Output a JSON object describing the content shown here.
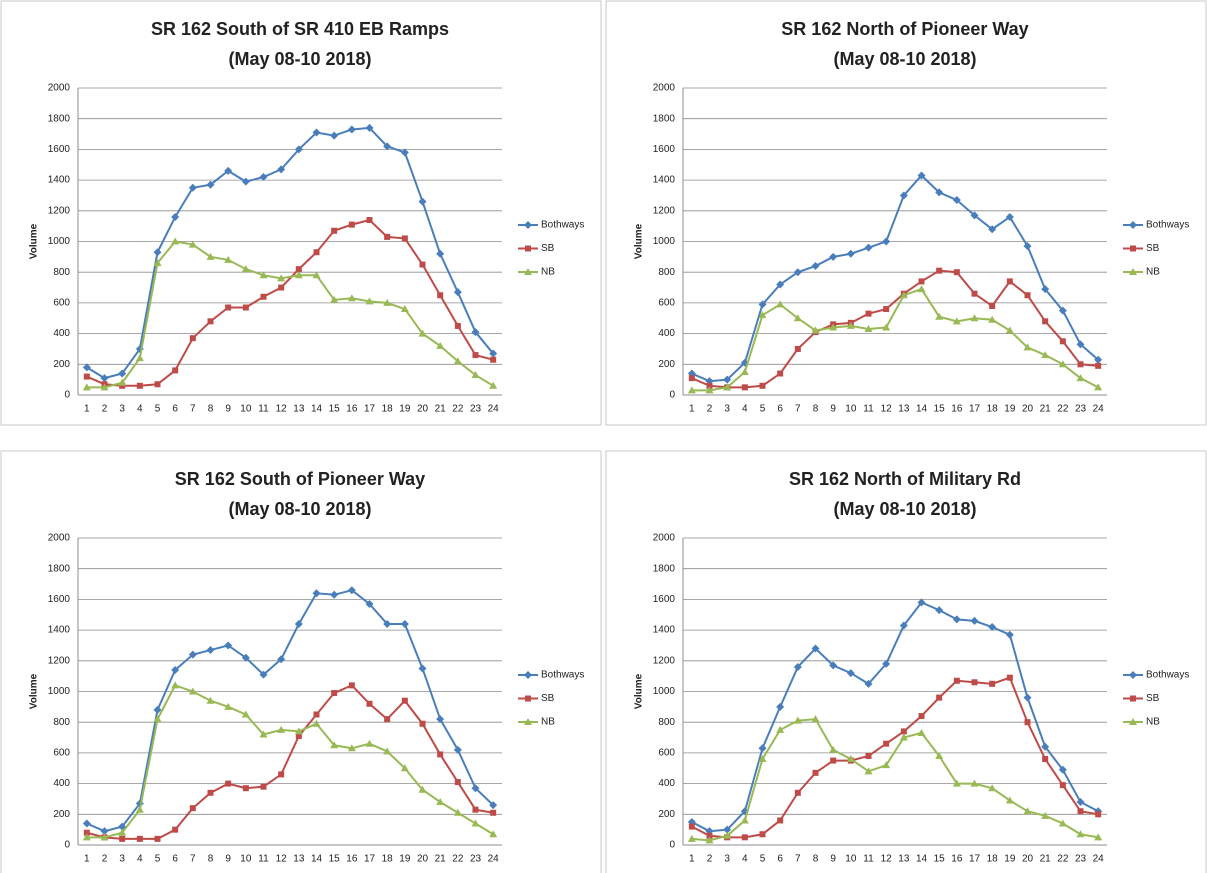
{
  "chart_data": [
    {
      "type": "line",
      "title": "SR 162 South of SR 410 EB Ramps",
      "subtitle": "(May 08-10 2018)",
      "y_label": "Volume",
      "categories": [
        1,
        2,
        3,
        4,
        5,
        6,
        7,
        8,
        9,
        10,
        11,
        12,
        13,
        14,
        15,
        16,
        17,
        18,
        19,
        20,
        21,
        22,
        23,
        24
      ],
      "ylim": [
        0,
        2000
      ],
      "yticks": [
        0,
        200,
        400,
        600,
        800,
        1000,
        1200,
        1400,
        1600,
        1800,
        2000
      ],
      "grid": true,
      "legend": "right",
      "series": [
        {
          "name": "Bothways",
          "color": "#4a7ebb",
          "marker": "diamond",
          "values": [
            180,
            110,
            140,
            300,
            930,
            1160,
            1350,
            1370,
            1460,
            1390,
            1420,
            1470,
            1600,
            1710,
            1690,
            1730,
            1740,
            1620,
            1580,
            1260,
            920,
            670,
            410,
            270
          ]
        },
        {
          "name": "SB",
          "color": "#be4b48",
          "marker": "square",
          "values": [
            120,
            70,
            60,
            60,
            70,
            160,
            370,
            480,
            570,
            570,
            640,
            700,
            820,
            930,
            1070,
            1110,
            1140,
            1030,
            1020,
            850,
            650,
            450,
            260,
            230
          ]
        },
        {
          "name": "NB",
          "color": "#98b954",
          "marker": "triangle",
          "values": [
            50,
            50,
            80,
            240,
            860,
            1000,
            980,
            900,
            880,
            820,
            780,
            760,
            780,
            780,
            620,
            630,
            610,
            600,
            560,
            400,
            320,
            220,
            130,
            60
          ]
        }
      ]
    },
    {
      "type": "line",
      "title": "SR 162 North of Pioneer Way",
      "subtitle": "(May 08-10 2018)",
      "y_label": "Volume",
      "categories": [
        1,
        2,
        3,
        4,
        5,
        6,
        7,
        8,
        9,
        10,
        11,
        12,
        13,
        14,
        15,
        16,
        17,
        18,
        19,
        20,
        21,
        22,
        23,
        24
      ],
      "ylim": [
        0,
        2000
      ],
      "yticks": [
        0,
        200,
        400,
        600,
        800,
        1000,
        1200,
        1400,
        1600,
        1800,
        2000
      ],
      "grid": true,
      "legend": "right",
      "series": [
        {
          "name": "Bothways",
          "color": "#4a7ebb",
          "marker": "diamond",
          "values": [
            140,
            90,
            100,
            210,
            590,
            720,
            800,
            840,
            900,
            920,
            960,
            1000,
            1300,
            1430,
            1320,
            1270,
            1170,
            1080,
            1160,
            970,
            690,
            550,
            330,
            230
          ]
        },
        {
          "name": "SB",
          "color": "#be4b48",
          "marker": "square",
          "values": [
            110,
            60,
            50,
            50,
            60,
            140,
            300,
            410,
            460,
            470,
            530,
            560,
            660,
            740,
            810,
            800,
            660,
            580,
            740,
            650,
            480,
            350,
            200,
            190
          ]
        },
        {
          "name": "NB",
          "color": "#98b954",
          "marker": "triangle",
          "values": [
            30,
            30,
            50,
            150,
            520,
            590,
            500,
            420,
            440,
            450,
            430,
            440,
            650,
            690,
            510,
            480,
            500,
            490,
            420,
            310,
            260,
            200,
            110,
            50
          ]
        }
      ]
    },
    {
      "type": "line",
      "title": "SR 162 South of Pioneer Way",
      "subtitle": "(May 08-10 2018)",
      "y_label": "Volume",
      "categories": [
        1,
        2,
        3,
        4,
        5,
        6,
        7,
        8,
        9,
        10,
        11,
        12,
        13,
        14,
        15,
        16,
        17,
        18,
        19,
        20,
        21,
        22,
        23,
        24
      ],
      "ylim": [
        0,
        2000
      ],
      "yticks": [
        0,
        200,
        400,
        600,
        800,
        1000,
        1200,
        1400,
        1600,
        1800,
        2000
      ],
      "grid": true,
      "legend": "right",
      "series": [
        {
          "name": "Bothways",
          "color": "#4a7ebb",
          "marker": "diamond",
          "values": [
            140,
            90,
            120,
            270,
            880,
            1140,
            1240,
            1270,
            1300,
            1220,
            1110,
            1210,
            1440,
            1640,
            1630,
            1660,
            1570,
            1440,
            1440,
            1150,
            820,
            620,
            370,
            260
          ]
        },
        {
          "name": "SB",
          "color": "#be4b48",
          "marker": "square",
          "values": [
            80,
            50,
            40,
            40,
            40,
            100,
            240,
            340,
            400,
            370,
            380,
            460,
            710,
            850,
            990,
            1040,
            920,
            820,
            940,
            790,
            590,
            410,
            230,
            210
          ]
        },
        {
          "name": "NB",
          "color": "#98b954",
          "marker": "triangle",
          "values": [
            50,
            50,
            80,
            230,
            820,
            1040,
            1000,
            940,
            900,
            850,
            720,
            750,
            740,
            790,
            650,
            630,
            660,
            610,
            500,
            360,
            280,
            210,
            140,
            70
          ]
        }
      ]
    },
    {
      "type": "line",
      "title": "SR 162 North of Military Rd",
      "subtitle": "(May 08-10 2018)",
      "y_label": "Volume",
      "categories": [
        1,
        2,
        3,
        4,
        5,
        6,
        7,
        8,
        9,
        10,
        11,
        12,
        13,
        14,
        15,
        16,
        17,
        18,
        19,
        20,
        21,
        22,
        23,
        24
      ],
      "ylim": [
        0,
        2000
      ],
      "yticks": [
        0,
        200,
        400,
        600,
        800,
        1000,
        1200,
        1400,
        1600,
        1800,
        2000
      ],
      "grid": true,
      "legend": "right",
      "series": [
        {
          "name": "Bothways",
          "color": "#4a7ebb",
          "marker": "diamond",
          "values": [
            150,
            90,
            100,
            220,
            630,
            900,
            1160,
            1280,
            1170,
            1120,
            1050,
            1180,
            1430,
            1580,
            1530,
            1470,
            1460,
            1420,
            1370,
            960,
            640,
            490,
            280,
            220
          ]
        },
        {
          "name": "SB",
          "color": "#be4b48",
          "marker": "square",
          "values": [
            120,
            60,
            50,
            50,
            70,
            160,
            340,
            470,
            550,
            550,
            580,
            660,
            740,
            840,
            960,
            1070,
            1060,
            1050,
            1090,
            800,
            560,
            390,
            220,
            200
          ]
        },
        {
          "name": "NB",
          "color": "#98b954",
          "marker": "triangle",
          "values": [
            40,
            30,
            60,
            160,
            560,
            750,
            810,
            820,
            620,
            560,
            480,
            520,
            700,
            730,
            580,
            400,
            400,
            370,
            290,
            220,
            190,
            140,
            70,
            50
          ]
        }
      ]
    }
  ]
}
